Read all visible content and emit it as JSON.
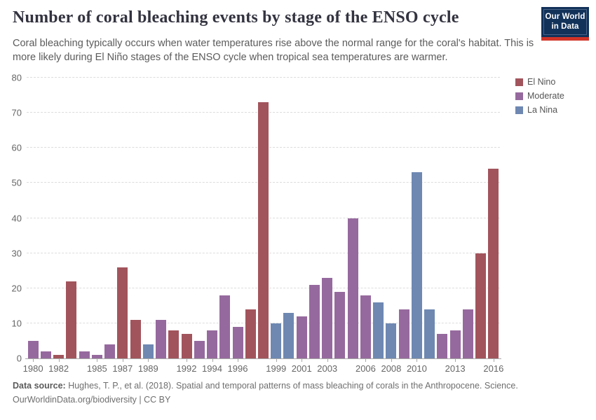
{
  "header": {
    "title": "Number of coral bleaching events by stage of the ENSO cycle",
    "subtitle": "Coral bleaching typically occurs when water temperatures rise above the normal range for the coral's habitat. This is more likely during El Niño stages of the ENSO cycle when tropical sea temperatures are warmer.",
    "logo": {
      "line1": "Our World",
      "line2": "in Data"
    }
  },
  "chart_data": {
    "type": "bar",
    "title": "Number of coral bleaching events by stage of the ENSO cycle",
    "xlabel": "",
    "ylabel": "",
    "ylim": [
      0,
      80
    ],
    "y_ticks": [
      0,
      10,
      20,
      30,
      40,
      50,
      60,
      70,
      80
    ],
    "grid": "horizontal-dashed",
    "legend_position": "right-top",
    "legend": [
      {
        "label": "El Nino",
        "color": "#A2545C"
      },
      {
        "label": "Moderate",
        "color": "#96699E"
      },
      {
        "label": "La Nina",
        "color": "#6E88B2"
      }
    ],
    "x_tick_labels": [
      "1980",
      "1982",
      "1985",
      "1987",
      "1989",
      "1992",
      "1994",
      "1996",
      "1999",
      "2001",
      "2003",
      "2006",
      "2008",
      "2010",
      "2013",
      "2016"
    ],
    "bars": [
      {
        "year": 1980,
        "value": 5,
        "group": "Moderate"
      },
      {
        "year": 1981,
        "value": 2,
        "group": "Moderate"
      },
      {
        "year": 1982,
        "value": 1,
        "group": "El Nino"
      },
      {
        "year": 1983,
        "value": 22,
        "group": "El Nino"
      },
      {
        "year": 1984,
        "value": 2,
        "group": "Moderate"
      },
      {
        "year": 1985,
        "value": 1,
        "group": "Moderate"
      },
      {
        "year": 1986,
        "value": 4,
        "group": "Moderate"
      },
      {
        "year": 1987,
        "value": 26,
        "group": "El Nino"
      },
      {
        "year": 1988,
        "value": 11,
        "group": "El Nino"
      },
      {
        "year": 1989,
        "value": 4,
        "group": "La Nina"
      },
      {
        "year": 1990,
        "value": 11,
        "group": "Moderate"
      },
      {
        "year": 1991,
        "value": 8,
        "group": "El Nino"
      },
      {
        "year": 1992,
        "value": 7,
        "group": "El Nino"
      },
      {
        "year": 1993,
        "value": 5,
        "group": "Moderate"
      },
      {
        "year": 1994,
        "value": 8,
        "group": "Moderate"
      },
      {
        "year": 1995,
        "value": 18,
        "group": "Moderate"
      },
      {
        "year": 1996,
        "value": 9,
        "group": "Moderate"
      },
      {
        "year": 1997,
        "value": 14,
        "group": "El Nino"
      },
      {
        "year": 1998,
        "value": 73,
        "group": "El Nino"
      },
      {
        "year": 1999,
        "value": 10,
        "group": "La Nina"
      },
      {
        "year": 2000,
        "value": 13,
        "group": "La Nina"
      },
      {
        "year": 2001,
        "value": 12,
        "group": "Moderate"
      },
      {
        "year": 2002,
        "value": 21,
        "group": "Moderate"
      },
      {
        "year": 2003,
        "value": 23,
        "group": "Moderate"
      },
      {
        "year": 2004,
        "value": 19,
        "group": "Moderate"
      },
      {
        "year": 2005,
        "value": 40,
        "group": "Moderate"
      },
      {
        "year": 2006,
        "value": 18,
        "group": "Moderate"
      },
      {
        "year": 2007,
        "value": 16,
        "group": "La Nina"
      },
      {
        "year": 2008,
        "value": 10,
        "group": "La Nina"
      },
      {
        "year": 2009,
        "value": 14,
        "group": "Moderate"
      },
      {
        "year": 2010,
        "value": 53,
        "group": "La Nina"
      },
      {
        "year": 2011,
        "value": 14,
        "group": "La Nina"
      },
      {
        "year": 2012,
        "value": 7,
        "group": "Moderate"
      },
      {
        "year": 2013,
        "value": 8,
        "group": "Moderate"
      },
      {
        "year": 2014,
        "value": 14,
        "group": "Moderate"
      },
      {
        "year": 2015,
        "value": 30,
        "group": "El Nino"
      },
      {
        "year": 2016,
        "value": 54,
        "group": "El Nino"
      }
    ]
  },
  "footer": {
    "source_label": "Data source:",
    "source_text": " Hughes, T. P., et al. (2018). Spatial and temporal patterns of mass bleaching of corals in the Anthropocene. Science.",
    "license_link": "OurWorldinData.org/biodiversity",
    "license_rest": " | CC BY"
  }
}
